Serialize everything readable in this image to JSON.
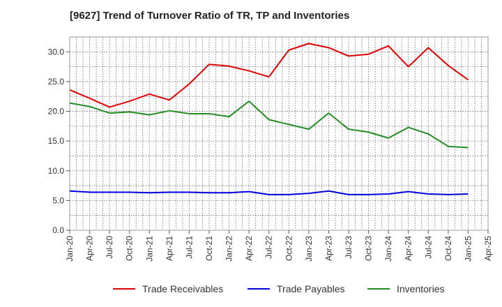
{
  "chart_data": {
    "type": "line",
    "title": "[9627]  Trend of Turnover Ratio of TR, TP and Inventories",
    "xlabel": "",
    "ylabel": "",
    "ylim": [
      0,
      32.5
    ],
    "yticks": [
      "0.0",
      "5.0",
      "10.0",
      "15.0",
      "20.0",
      "25.0",
      "30.0"
    ],
    "ytick_values": [
      0,
      5,
      10,
      15,
      20,
      25,
      30
    ],
    "xticks": [
      "Jan-20",
      "Apr-20",
      "Jul-20",
      "Oct-20",
      "Jan-21",
      "Apr-21",
      "Jul-21",
      "Oct-21",
      "Jan-22",
      "Apr-22",
      "Jul-22",
      "Oct-22",
      "Jan-23",
      "Apr-23",
      "Jul-23",
      "Oct-23",
      "Jan-24",
      "Apr-24",
      "Jul-24",
      "Oct-24",
      "Jan-25",
      "Apr-25"
    ],
    "x": [
      "Jan-20",
      "Apr-20",
      "Jul-20",
      "Oct-20",
      "Jan-21",
      "Apr-21",
      "Jul-21",
      "Oct-21",
      "Jan-22",
      "Apr-22",
      "Jul-22",
      "Oct-22",
      "Jan-23",
      "Apr-23",
      "Jul-23",
      "Oct-23",
      "Jan-24",
      "Apr-24",
      "Jul-24",
      "Oct-24",
      "Jan-25"
    ],
    "grid": true,
    "legend_position": "bottom",
    "series": [
      {
        "name": "Trade Receivables",
        "color": "#e00000",
        "values": [
          23.6,
          22.2,
          20.7,
          21.7,
          22.9,
          21.9,
          24.6,
          27.9,
          27.6,
          26.8,
          25.8,
          30.3,
          31.4,
          30.7,
          29.3,
          29.6,
          31.0,
          27.5,
          30.7,
          27.7,
          25.3
        ]
      },
      {
        "name": "Trade Payables",
        "color": "#0000dd",
        "values": [
          6.6,
          6.4,
          6.4,
          6.4,
          6.3,
          6.4,
          6.4,
          6.3,
          6.3,
          6.5,
          6.0,
          6.0,
          6.2,
          6.6,
          6.0,
          6.0,
          6.1,
          6.5,
          6.1,
          6.0,
          6.1
        ]
      },
      {
        "name": "Inventories",
        "color": "#228b22",
        "values": [
          21.4,
          20.8,
          19.7,
          19.9,
          19.4,
          20.1,
          19.6,
          19.6,
          19.1,
          21.7,
          18.6,
          17.8,
          17.0,
          19.7,
          17.0,
          16.5,
          15.5,
          17.3,
          16.2,
          14.1,
          13.9
        ]
      }
    ]
  }
}
